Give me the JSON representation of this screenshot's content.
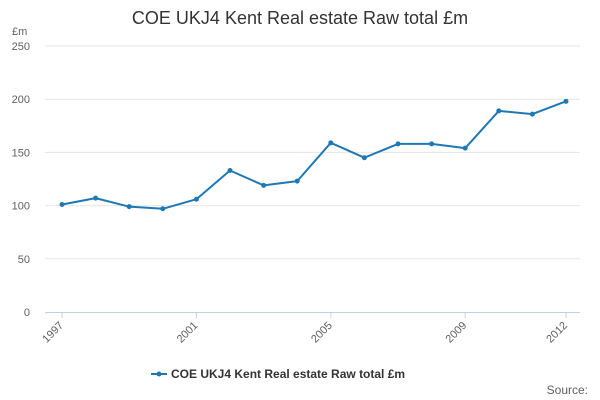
{
  "chart_data": {
    "type": "line",
    "title": "COE UKJ4 Kent Real estate Raw total £m",
    "y_unit": "£m",
    "xlabel": "",
    "ylabel": "",
    "x": [
      1997,
      1998,
      1999,
      2000,
      2001,
      2002,
      2003,
      2004,
      2005,
      2006,
      2007,
      2008,
      2009,
      2010,
      2011,
      2012
    ],
    "x_tick_labels": [
      "1997",
      "2001",
      "2005",
      "2009",
      "2012"
    ],
    "x_tick_values": [
      1997,
      2001,
      2005,
      2009,
      2012
    ],
    "xlim": [
      1997,
      2012
    ],
    "ylim": [
      0,
      250
    ],
    "y_ticks": [
      0,
      50,
      100,
      150,
      200,
      250
    ],
    "grid": true,
    "legend_position": "bottom",
    "series": [
      {
        "name": "COE UKJ4 Kent Real estate Raw total £m",
        "color": "#1f78b4",
        "values": [
          101,
          107,
          99,
          97,
          106,
          133,
          119,
          123,
          159,
          145,
          158,
          158,
          154,
          189,
          186,
          198
        ]
      }
    ]
  },
  "source_label": "Source:"
}
